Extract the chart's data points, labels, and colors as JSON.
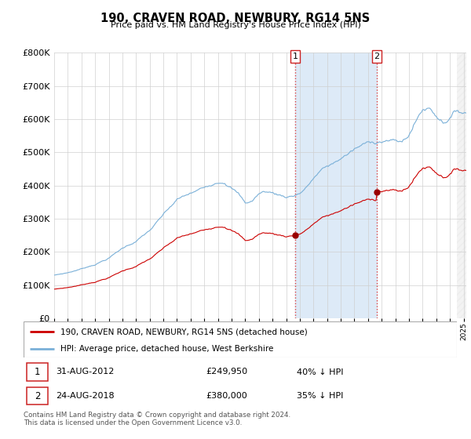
{
  "title": "190, CRAVEN ROAD, NEWBURY, RG14 5NS",
  "subtitle": "Price paid vs. HM Land Registry's House Price Index (HPI)",
  "ylim": [
    0,
    800000
  ],
  "yticks": [
    0,
    100000,
    200000,
    300000,
    400000,
    500000,
    600000,
    700000,
    800000
  ],
  "grid_color": "#d0d0d0",
  "hpi_color": "#7ab0d8",
  "price_color": "#cc0000",
  "highlight_bg": "#ddeaf7",
  "ann1_x": 2012.665,
  "ann1_price": 249950,
  "ann2_x": 2018.648,
  "ann2_price": 380000,
  "x_min": 1995,
  "x_max": 2025.2,
  "legend_entry1": "190, CRAVEN ROAD, NEWBURY, RG14 5NS (detached house)",
  "legend_entry2": "HPI: Average price, detached house, West Berkshire",
  "footnote": "Contains HM Land Registry data © Crown copyright and database right 2024.\nThis data is licensed under the Open Government Licence v3.0."
}
